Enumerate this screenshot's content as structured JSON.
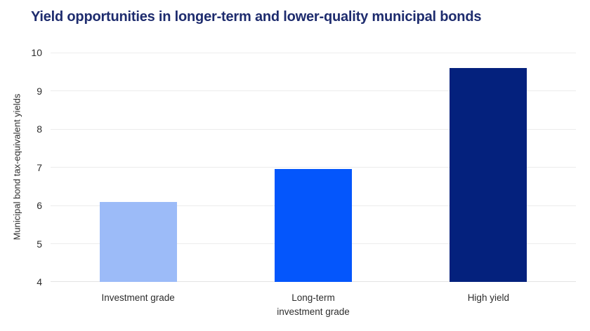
{
  "header": {
    "title": "Yield opportunities in longer-term and lower-quality municipal bonds",
    "title_color": "#1e2c6e"
  },
  "chart_data": {
    "type": "bar",
    "title": "Yield opportunities in longer-term and lower-quality municipal bonds",
    "categories": [
      "Investment grade",
      "Long-term\ninvestment grade",
      "High yield"
    ],
    "values": [
      6.1,
      6.95,
      9.6
    ],
    "bar_colors": [
      "#9cbbf8",
      "#0456fc",
      "#04217d"
    ],
    "xlabel": "",
    "ylabel": "Municipal bond tax-equivalent yields",
    "ylim": [
      4,
      10
    ],
    "yticks": [
      4,
      5,
      6,
      7,
      8,
      9,
      10
    ],
    "grid": true,
    "gridline_color": "#ececec",
    "axis_text_color": "#2d2d2d",
    "legend": "none",
    "background": "#ffffff"
  }
}
